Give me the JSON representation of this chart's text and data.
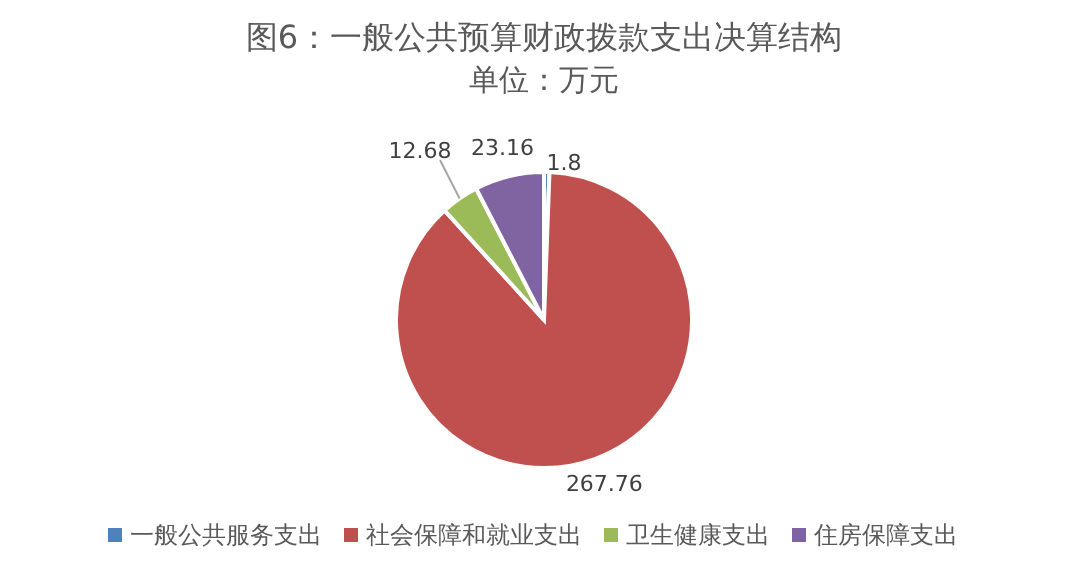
{
  "chart_data": {
    "type": "pie",
    "title": "图6：一般公共预算财政拨款支出决算结构",
    "subtitle": "单位：万元",
    "categories": [
      "一般公共服务支出",
      "社会保障和就业支出",
      "卫生健康支出",
      "住房保障支出"
    ],
    "values": [
      1.8,
      267.76,
      12.68,
      23.16
    ],
    "colors": [
      "#4f81bd",
      "#c0504d",
      "#9bbb59",
      "#8064a2"
    ],
    "data_labels": true,
    "legend": "bottom"
  }
}
